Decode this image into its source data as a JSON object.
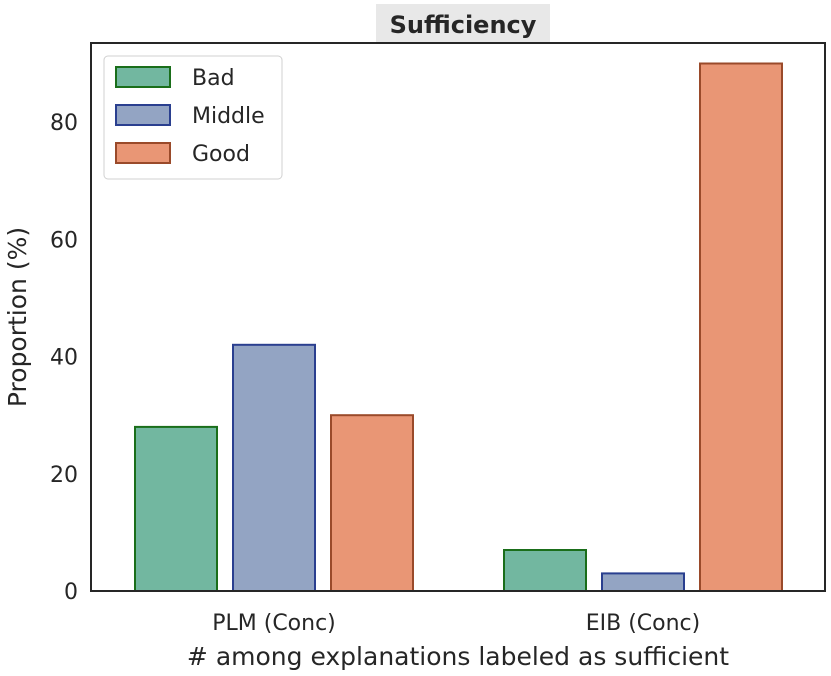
{
  "chart_data": {
    "type": "bar",
    "title": "Sufficiency",
    "xlabel": "# among explanations labeled as sufficient",
    "ylabel": "Proportion (%)",
    "categories": [
      "PLM (Conc)",
      "EIB (Conc)"
    ],
    "series": [
      {
        "name": "Bad",
        "values": [
          28,
          7
        ]
      },
      {
        "name": "Middle",
        "values": [
          42,
          3
        ]
      },
      {
        "name": "Good",
        "values": [
          30,
          90
        ]
      }
    ],
    "ylim": [
      0,
      93.5
    ],
    "yticks": [
      0,
      20,
      40,
      60,
      80
    ],
    "grid": false,
    "legend": "top-left"
  },
  "colors": {
    "series_fill": [
      "#72b7a0",
      "#93a4c3",
      "#e99675"
    ],
    "series_edge": [
      "#1a6e1a",
      "#2a3f8f",
      "#9a4a2a"
    ],
    "axis": "#262626",
    "title_bg": "#e8e8e8"
  }
}
